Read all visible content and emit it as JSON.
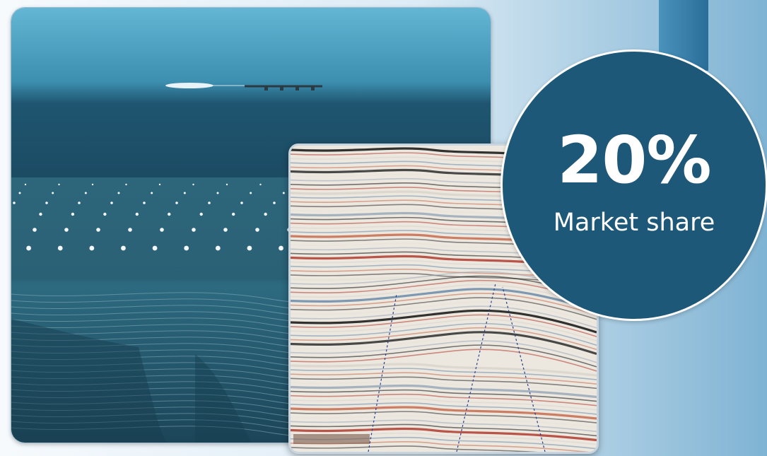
{
  "stat": {
    "value": "20%",
    "label": "Market share"
  },
  "colors": {
    "circle": "#1e5878",
    "accent_tab": "#2a6e98",
    "ocean_top": "#5fb0cf",
    "ocean_deep": "#1d4a63"
  }
}
